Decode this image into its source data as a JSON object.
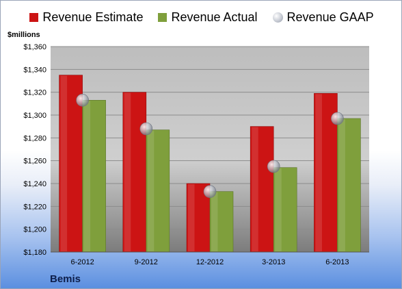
{
  "chart_data": {
    "type": "bar",
    "title": "",
    "ylabel": "$millions",
    "footer_label": "Bemis",
    "categories": [
      "6-2012",
      "9-2012",
      "12-2012",
      "3-2013",
      "6-2013"
    ],
    "series": [
      {
        "name": "Revenue Estimate",
        "values": [
          1335,
          1320,
          1240,
          1290,
          1319
        ],
        "color": "#cc1414"
      },
      {
        "name": "Revenue Actual",
        "values": [
          1313,
          1287,
          1233,
          1254,
          1297
        ],
        "color": "#7f9f3c"
      }
    ],
    "markers": {
      "name": "Revenue GAAP",
      "values": [
        1313,
        1288,
        1233,
        1255,
        1297
      ],
      "color": "#b8bcc6"
    },
    "ylim": [
      1180,
      1360
    ],
    "yticks": [
      1180,
      1200,
      1220,
      1240,
      1260,
      1280,
      1300,
      1320,
      1340,
      1360
    ],
    "ytick_labels": [
      "$1,180",
      "$1,200",
      "$1,220",
      "$1,240",
      "$1,260",
      "$1,280",
      "$1,300",
      "$1,320",
      "$1,340",
      "$1,360"
    ],
    "grid": true,
    "legend_position": "top"
  }
}
